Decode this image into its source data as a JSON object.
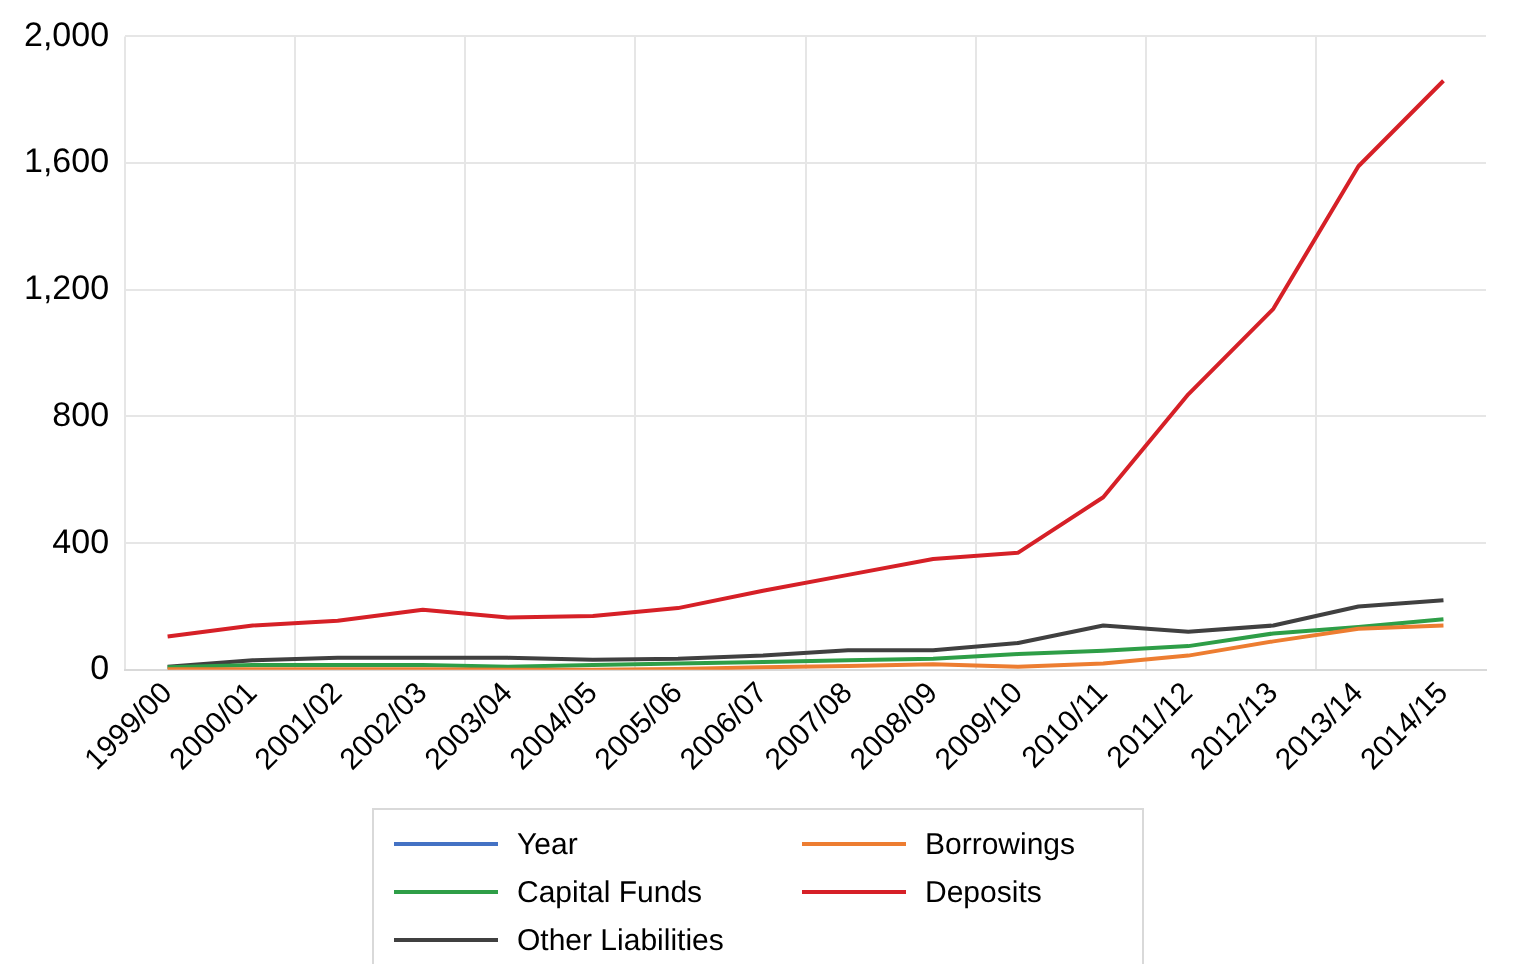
{
  "chart_data": {
    "type": "line",
    "categories": [
      "1999/00",
      "2000/01",
      "2001/02",
      "2002/03",
      "2003/04",
      "2004/05",
      "2005/06",
      "2006/07",
      "2007/08",
      "2008/09",
      "2009/10",
      "2010/11",
      "2011/12",
      "2012/13",
      "2013/14",
      "2014/15"
    ],
    "series": [
      {
        "name": "Year",
        "color": "#4472c4",
        "values": [
          null,
          null,
          null,
          null,
          null,
          null,
          null,
          null,
          null,
          null,
          null,
          null,
          null,
          null,
          null,
          null
        ]
      },
      {
        "name": "Borrowings",
        "color": "#ed7d31",
        "values": [
          2,
          2,
          2,
          2,
          0,
          0,
          3,
          8,
          12,
          18,
          10,
          20,
          45,
          90,
          130,
          140
        ]
      },
      {
        "name": "Capital Funds",
        "color": "#2e9e47",
        "values": [
          8,
          15,
          15,
          15,
          10,
          15,
          20,
          25,
          30,
          35,
          50,
          60,
          75,
          115,
          135,
          160
        ]
      },
      {
        "name": "Deposits",
        "color": "#d62027",
        "values": [
          105,
          140,
          155,
          190,
          165,
          170,
          195,
          250,
          300,
          350,
          370,
          545,
          870,
          1140,
          1590,
          1860
        ]
      },
      {
        "name": "Other Liabilities",
        "color": "#404040",
        "values": [
          10,
          30,
          38,
          38,
          38,
          32,
          35,
          45,
          62,
          62,
          85,
          140,
          120,
          140,
          200,
          220
        ]
      }
    ],
    "ylim": [
      0,
      2000
    ],
    "yticks": [
      {
        "value": 0,
        "label": "0"
      },
      {
        "value": 400,
        "label": "400"
      },
      {
        "value": 800,
        "label": "800"
      },
      {
        "value": 1200,
        "label": "1,200"
      },
      {
        "value": 1600,
        "label": "1,600"
      },
      {
        "value": 2000,
        "label": "2,000"
      }
    ],
    "grid": true,
    "legend": "bottom",
    "marker": "none",
    "line_style": "solid"
  }
}
